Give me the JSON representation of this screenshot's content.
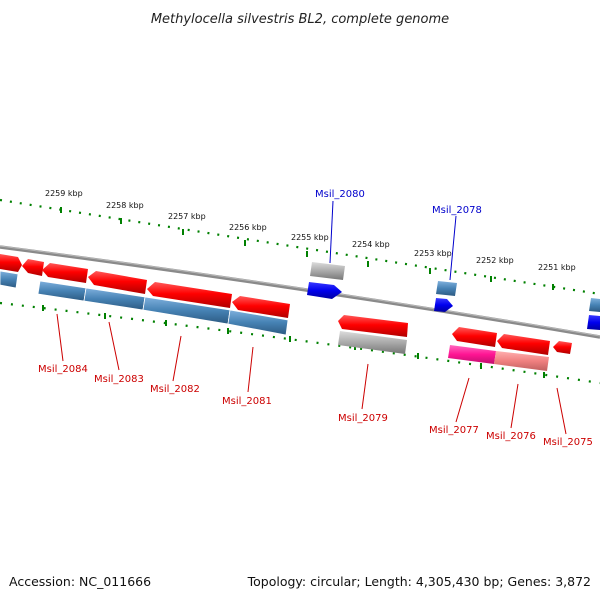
{
  "title": "Methylocella silvestris BL2, complete genome",
  "accession": "Accession: NC_011666",
  "summary": "Topology: circular; Length: 4,305,430 bp; Genes: 3,872",
  "colors": {
    "forward_cds": "#ff0000",
    "reverse_cds": "#0000ee",
    "gene_feature": "#4682b4",
    "pseudo_gene": "#aaaaaa",
    "rna": "#ff1493",
    "backbone": "#808080",
    "ruler": "#008000",
    "label_forward": "#cc0000",
    "label_reverse": "#0000cc"
  },
  "ruler_labels": [
    "2259 kbp",
    "2258 kbp",
    "2257 kbp",
    "2256 kbp",
    "2255 kbp",
    "2254 kbp",
    "2253 kbp",
    "2252 kbp",
    "2251 kbp"
  ],
  "gene_labels_top": [
    "Msil_2080",
    "Msil_2078"
  ],
  "gene_labels_bottom": [
    "Msil_2084",
    "Msil_2083",
    "Msil_2082",
    "Msil_2081",
    "Msil_2079",
    "Msil_2077",
    "Msil_2076",
    "Msil_2075"
  ]
}
